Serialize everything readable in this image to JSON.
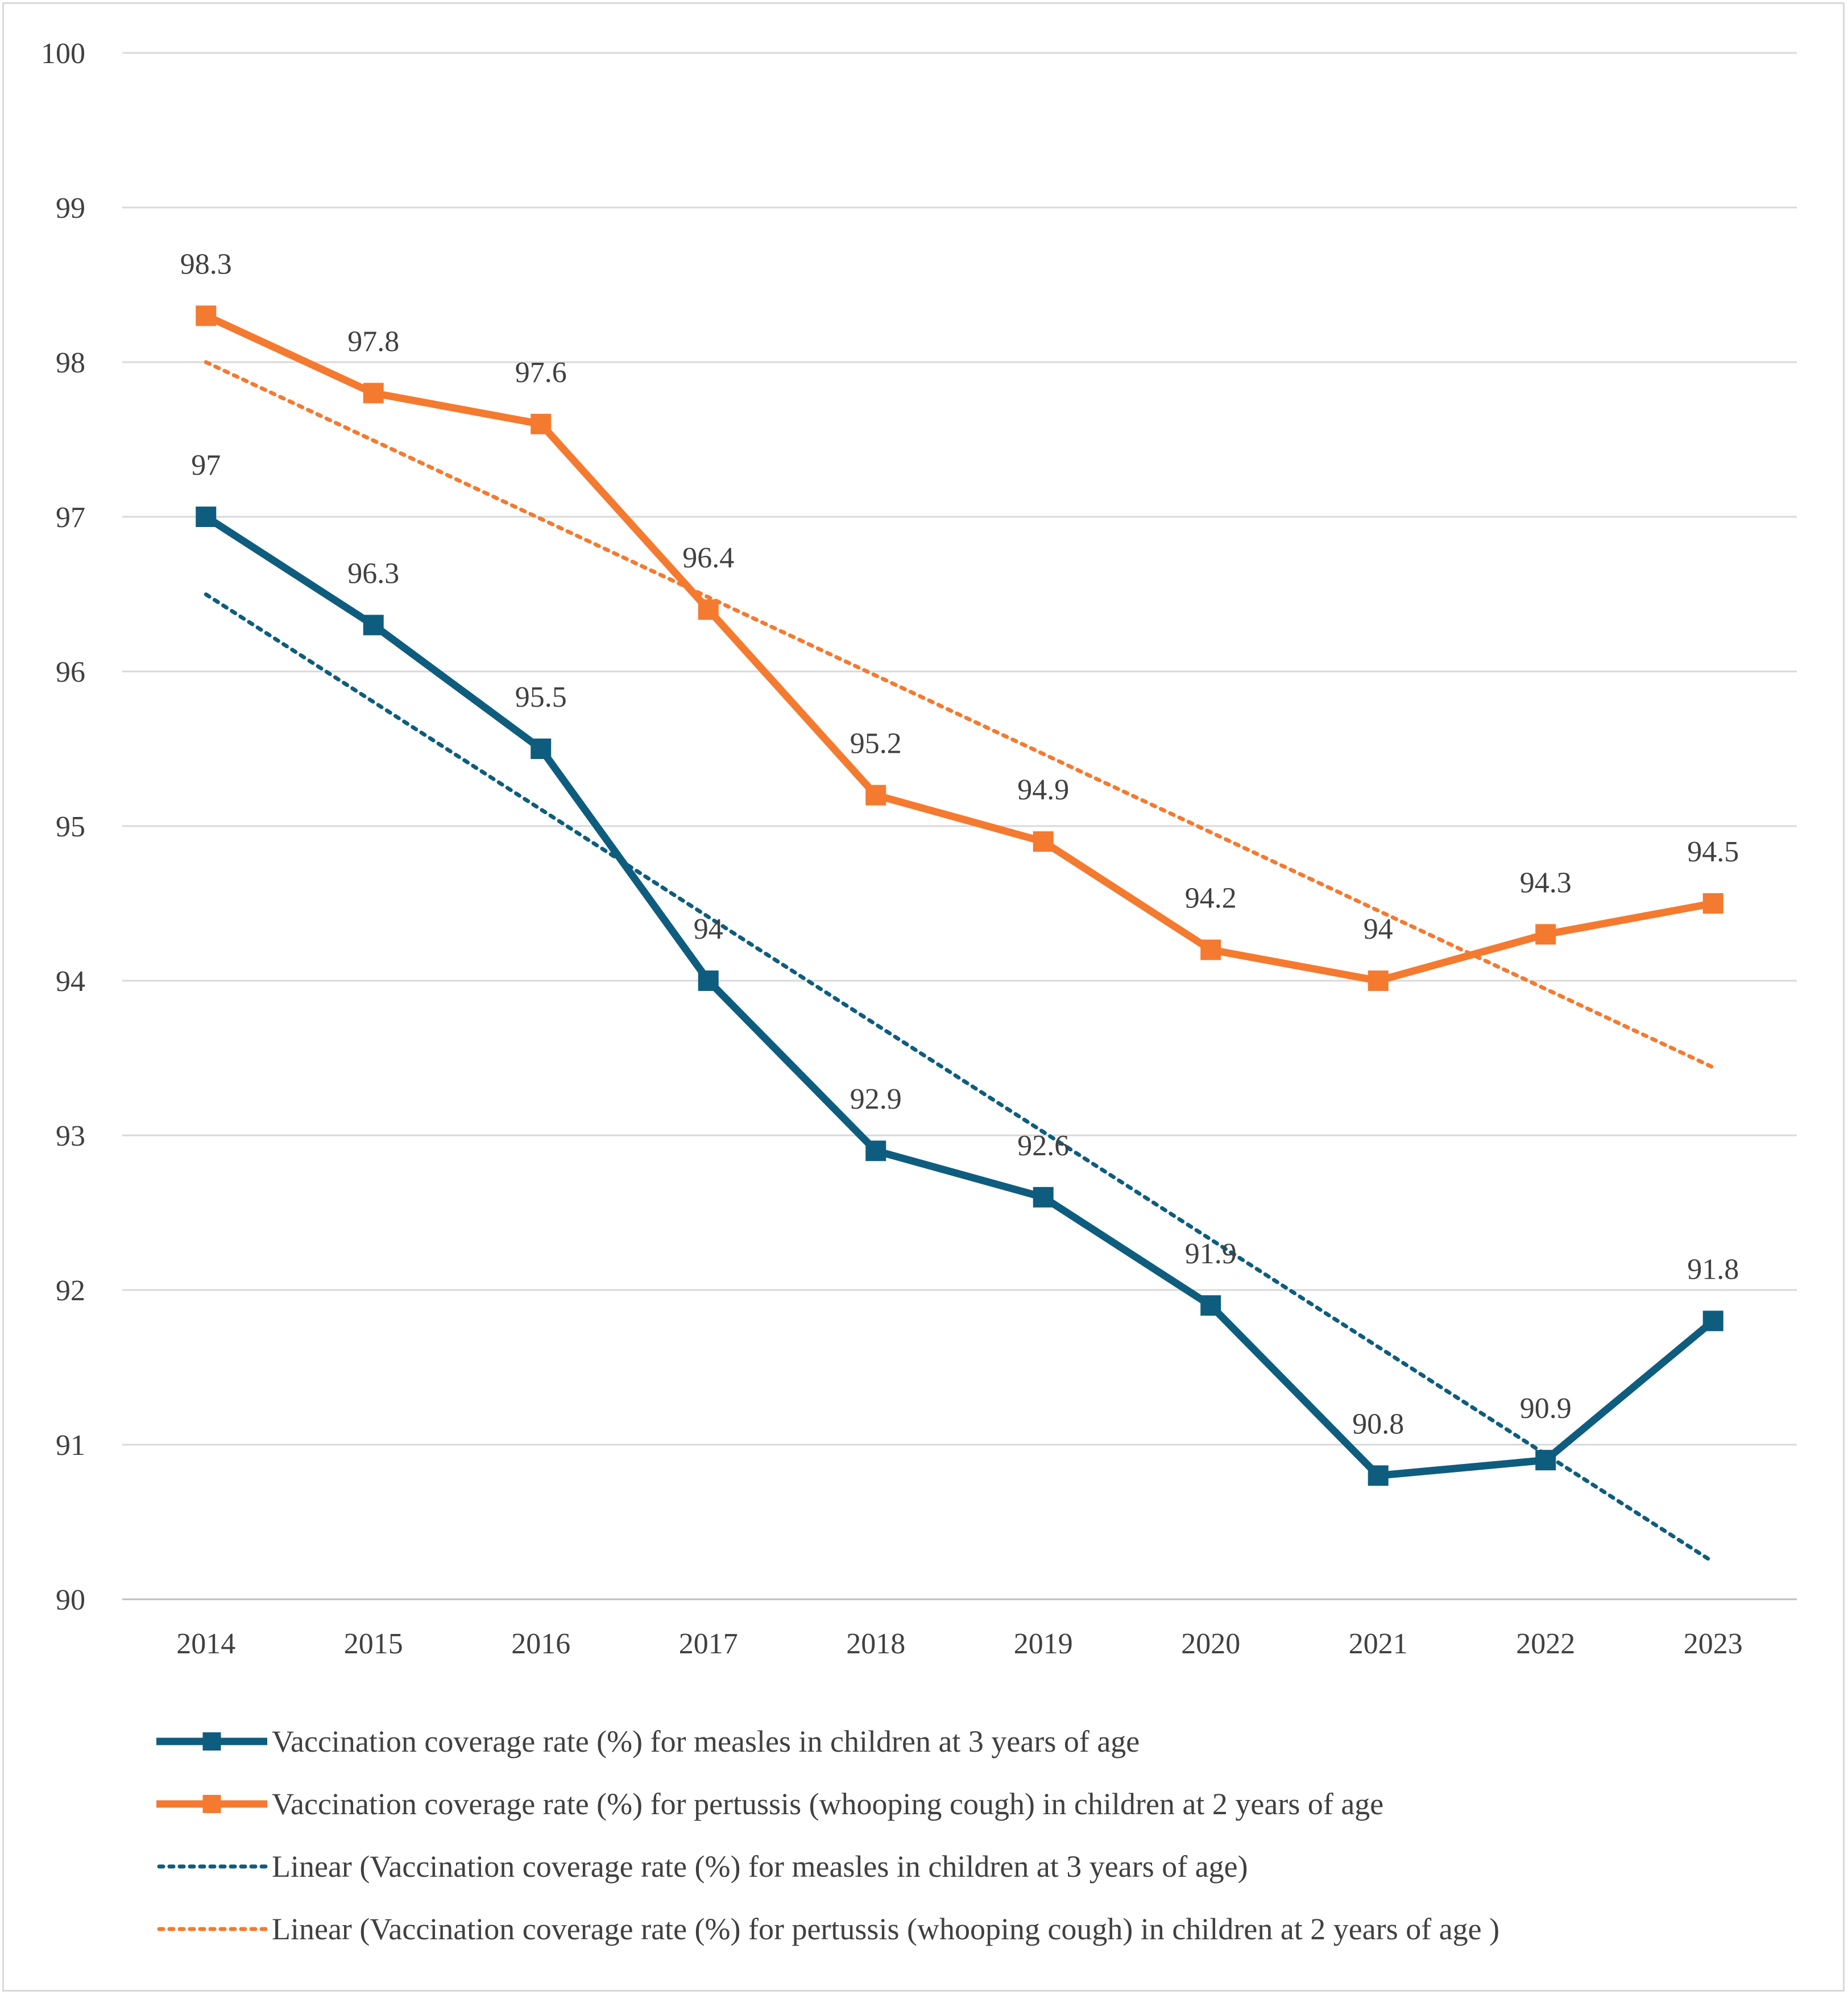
{
  "chart_data": {
    "type": "line",
    "title": "",
    "xlabel": "",
    "ylabel": "",
    "categories": [
      "2014",
      "2015",
      "2016",
      "2017",
      "2018",
      "2019",
      "2020",
      "2021",
      "2022",
      "2023"
    ],
    "ylim": [
      90,
      100
    ],
    "yticks": [
      90,
      91,
      92,
      93,
      94,
      95,
      96,
      97,
      98,
      99,
      100
    ],
    "grid": true,
    "legend_position": "bottom",
    "series": [
      {
        "name": "Vaccination coverage rate (%) for measles in children at 3 years of age",
        "color": "#0e5d7f",
        "style": "solid-marker",
        "values": [
          97,
          96.3,
          95.5,
          94,
          92.9,
          92.6,
          91.9,
          90.8,
          90.9,
          91.8
        ],
        "labels": [
          "97",
          "96.3",
          "95.5",
          "94",
          "92.9",
          "92.6",
          "91.9",
          "90.8",
          "90.9",
          "91.8"
        ]
      },
      {
        "name": "Vaccination coverage rate (%) for pertussis (whooping cough) in children at 2 years of age",
        "color": "#f47a30",
        "style": "solid-marker",
        "values": [
          98.3,
          97.8,
          97.6,
          96.4,
          95.2,
          94.9,
          94.2,
          94,
          94.3,
          94.5
        ],
        "labels": [
          "98.3",
          "97.8",
          "97.6",
          "96.4",
          "95.2",
          "94.9",
          "94.2",
          "94",
          "94.3",
          "94.5"
        ]
      }
    ],
    "trendlines": [
      {
        "name": "Linear (Vaccination coverage rate (%) for measles in children at 3 years of age)",
        "color": "#0e5d7f",
        "of_series": 0
      },
      {
        "name": "Linear (Vaccination coverage rate (%) for pertussis (whooping cough) in children at 2 years of age )",
        "color": "#f47a30",
        "of_series": 1
      }
    ]
  }
}
